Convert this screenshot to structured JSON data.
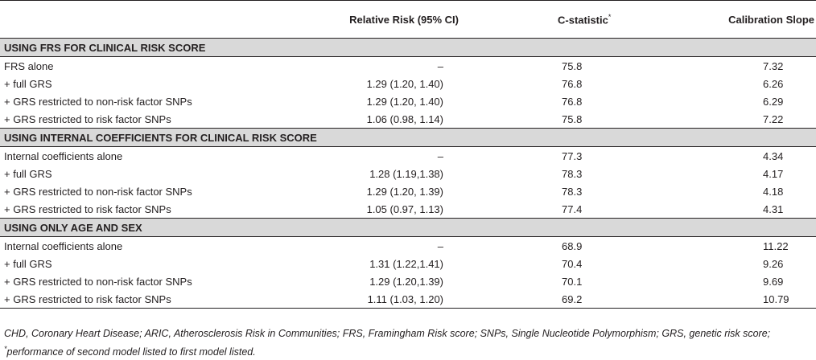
{
  "header": {
    "col_label": "",
    "col_rr": "Relative Risk (95% CI)",
    "col_cstat": "C-statistic",
    "col_cstat_mark": "*",
    "col_cal": "Calibration Slope"
  },
  "sections": [
    {
      "title": "USING FRS FOR CLINICAL RISK SCORE",
      "rows": [
        {
          "label": "FRS alone",
          "rr": "–",
          "cstat": "75.8",
          "cal": "7.32"
        },
        {
          "label": "+ full GRS",
          "rr": "1.29 (1.20, 1.40)",
          "cstat": "76.8",
          "cal": "6.26"
        },
        {
          "label": "+ GRS restricted to non-risk factor SNPs",
          "rr": "1.29 (1.20, 1.40)",
          "cstat": "76.8",
          "cal": "6.29"
        },
        {
          "label": "+ GRS restricted to risk factor SNPs",
          "rr": "1.06 (0.98, 1.14)",
          "cstat": "75.8",
          "cal": "7.22"
        }
      ]
    },
    {
      "title": "USING INTERNAL COEFFICIENTS FOR CLINICAL RISK SCORE",
      "rows": [
        {
          "label": "Internal coefficients alone",
          "rr": "–",
          "cstat": "77.3",
          "cal": "4.34"
        },
        {
          "label": "+ full GRS",
          "rr": "1.28 (1.19,1.38)",
          "cstat": "78.3",
          "cal": "4.17"
        },
        {
          "label": "+ GRS restricted to non-risk factor SNPs",
          "rr": "1.29 (1.20, 1.39)",
          "cstat": "78.3",
          "cal": "4.18"
        },
        {
          "label": "+ GRS restricted to risk factor SNPs",
          "rr": "1.05 (0.97, 1.13)",
          "cstat": "77.4",
          "cal": "4.31"
        }
      ]
    },
    {
      "title": "USING ONLY AGE AND SEX",
      "rows": [
        {
          "label": "Internal coefficients alone",
          "rr": "–",
          "cstat": "68.9",
          "cal": "11.22"
        },
        {
          "label": "+ full GRS",
          "rr": "1.31 (1.22,1.41)",
          "cstat": "70.4",
          "cal": "9.26"
        },
        {
          "label": "+ GRS restricted to non-risk factor SNPs",
          "rr": "1.29 (1.20,1.39)",
          "cstat": "70.1",
          "cal": "9.69"
        },
        {
          "label": "+ GRS restricted to risk factor SNPs",
          "rr": "1.11 (1.03, 1.20)",
          "cstat": "69.2",
          "cal": "10.79"
        }
      ]
    }
  ],
  "footnote": {
    "abbrev": "CHD, Coronary Heart Disease; ARIC, Atherosclerosis Risk in Communities; FRS, Framingham Risk score; SNPs, Single Nucleotide Polymorphism; GRS, genetic risk score; ",
    "mark": "*",
    "note": "performance of second model listed to first model listed."
  }
}
